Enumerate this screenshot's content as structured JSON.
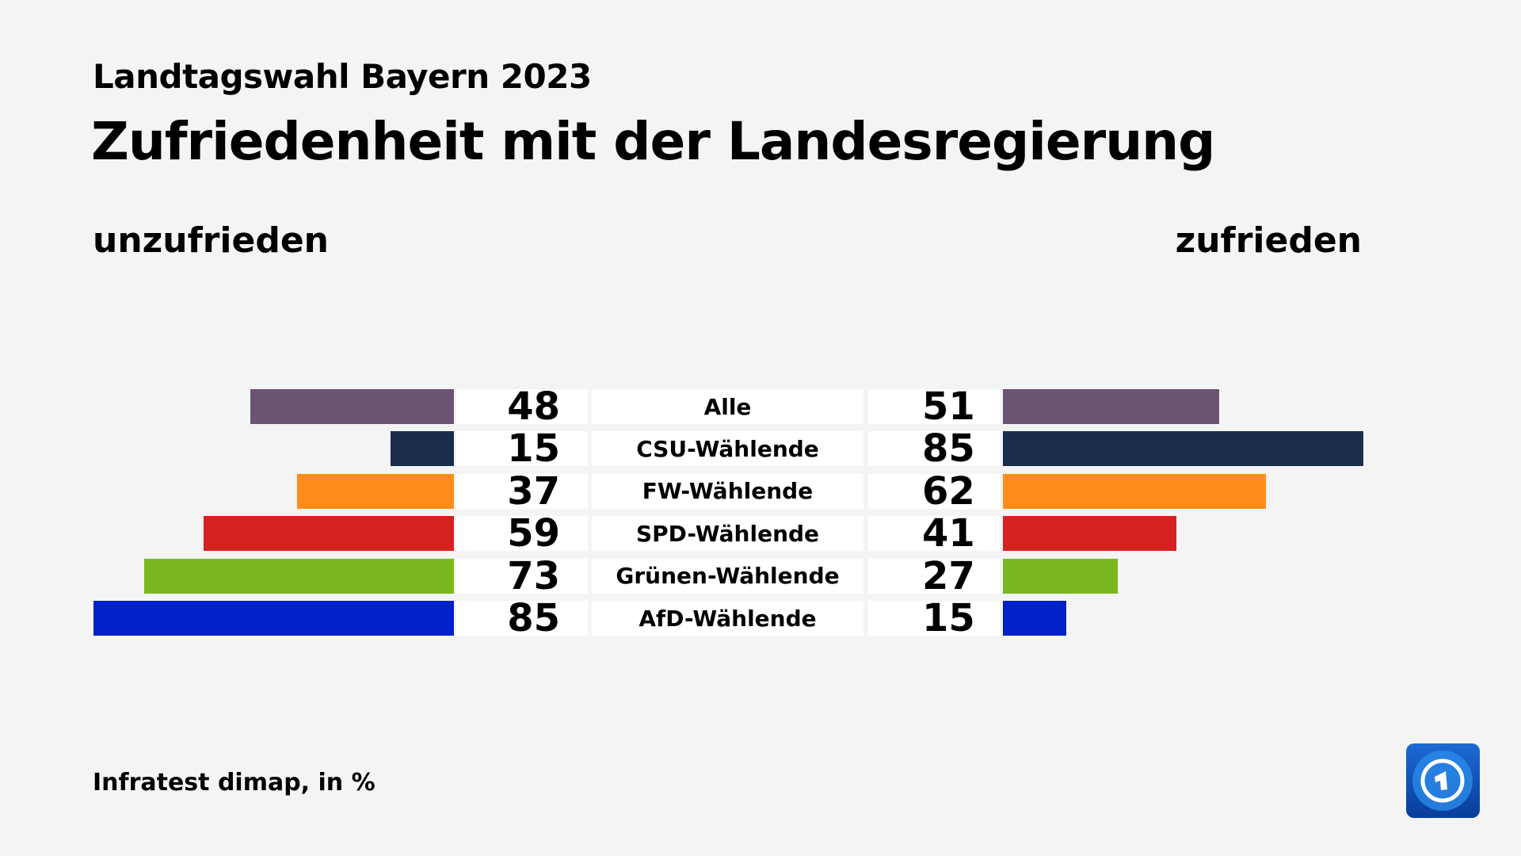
{
  "header": {
    "kicker": "Landtagswahl Bayern 2023",
    "title": "Zufriedenheit mit der Landesregierung"
  },
  "footer": {
    "source": "Infratest dimap, in %"
  },
  "logo": {
    "name": "tagesschau-logo"
  },
  "chart_data": {
    "type": "bar",
    "orientation": "diverging-horizontal",
    "categories": [
      "Alle",
      "CSU-Wählende",
      "FW-Wählende",
      "SPD-Wählende",
      "Grünen-Wählende",
      "AfD-Wählende"
    ],
    "series": [
      {
        "name": "unzufrieden",
        "values": [
          48,
          15,
          37,
          59,
          73,
          85
        ]
      },
      {
        "name": "zufrieden",
        "values": [
          51,
          85,
          62,
          41,
          27,
          15
        ]
      }
    ],
    "colors": [
      "#6b5373",
      "#1a2c4a",
      "#ff8c1a",
      "#d62121",
      "#7ab820",
      "#0020c8"
    ],
    "xlim": [
      0,
      85
    ],
    "grid": false
  }
}
